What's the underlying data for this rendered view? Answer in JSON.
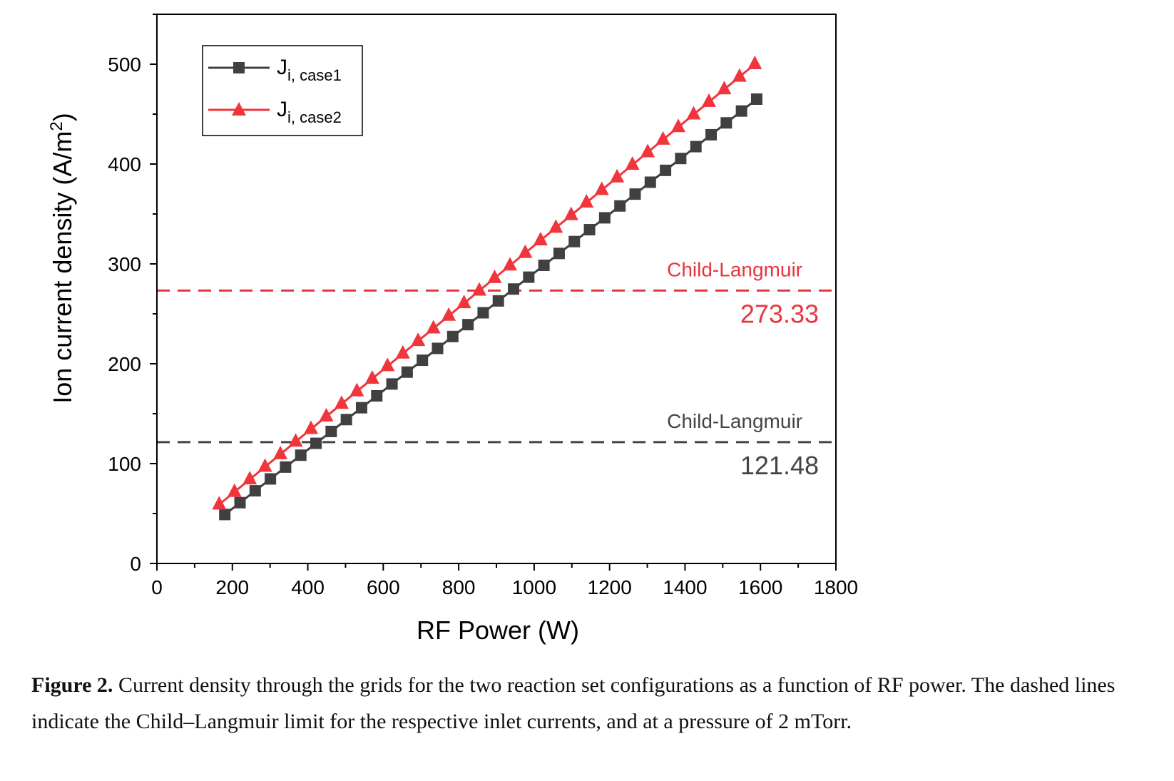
{
  "chart_data": {
    "type": "line",
    "xlabel": "RF Power (W)",
    "ylabel": "Ion current density (A/m",
    "ylabel_sup": "2",
    "ylabel_end": ")",
    "xlim": [
      0,
      1800
    ],
    "ylim": [
      0,
      550
    ],
    "x_ticks": [
      0,
      200,
      400,
      600,
      800,
      1000,
      1200,
      1400,
      1600,
      1800
    ],
    "y_ticks": [
      0,
      100,
      200,
      300,
      400,
      500
    ],
    "grid": false,
    "legend_position": "top-left",
    "series": [
      {
        "name": "J",
        "subscript": "i, case1",
        "color": "#404040",
        "marker": "square",
        "x_start": 180,
        "x_end": 1590,
        "y_start": 49,
        "y_end": 465,
        "points": 36
      },
      {
        "name": "J",
        "subscript": "i, case2",
        "color": "#f0353d",
        "marker": "triangle",
        "x_start": 165,
        "x_end": 1585,
        "y_start": 59,
        "y_end": 500,
        "points": 36
      }
    ],
    "reference_lines": [
      {
        "label": "Child-Langmuir",
        "value": 273.33,
        "value_text": "273.33",
        "color": "#e8353d"
      },
      {
        "label": "Child-Langmuir",
        "value": 121.48,
        "value_text": "121.48",
        "color": "#444444"
      }
    ]
  },
  "caption": {
    "label": "Figure 2.",
    "text": " Current density through the grids for the two reaction set configurations as a function of RF power. The dashed lines indicate the Child–Langmuir limit for the respective inlet currents, and at a pressure of 2 mTorr."
  }
}
